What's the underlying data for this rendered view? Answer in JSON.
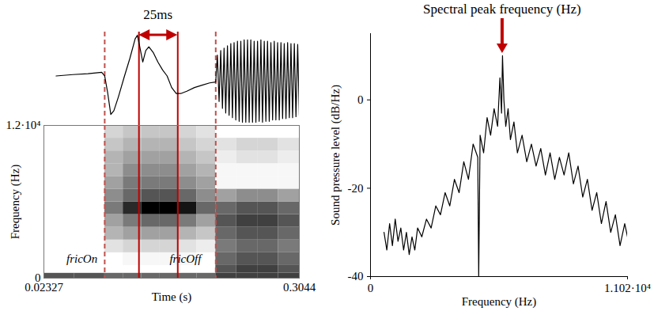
{
  "chart_data": [
    {
      "type": "line",
      "tick_labels": false,
      "color": "#000000",
      "x": [
        0.0367,
        0.0551,
        0.0718,
        0.0869,
        0.0902,
        0.0936,
        0.0969,
        0.1003,
        0.1053,
        0.112,
        0.1179,
        0.1237,
        0.1262,
        0.1288,
        0.1321,
        0.1354,
        0.1388,
        0.1438,
        0.1488,
        0.1539,
        0.1589,
        0.1639,
        0.1689,
        0.1739,
        0.1806,
        0.189,
        0.1974,
        0.2057,
        0.2124,
        0.2142,
        0.2161,
        0.2179,
        0.2198,
        0.2216,
        0.2234,
        0.2253,
        0.2271,
        0.229,
        0.2308,
        0.2326,
        0.2345,
        0.2363,
        0.2382,
        0.24,
        0.2418,
        0.2437,
        0.2455,
        0.2474,
        0.2492,
        0.251,
        0.2529,
        0.2547,
        0.2566,
        0.2584,
        0.2602,
        0.2621,
        0.2639,
        0.2658,
        0.2676,
        0.2694,
        0.2713,
        0.2731,
        0.275,
        0.2768,
        0.2786,
        0.2805,
        0.2823,
        0.2842,
        0.286,
        0.2878,
        0.2897,
        0.2915,
        0.2934,
        0.2952,
        0.297,
        0.2989,
        0.3007,
        0.3026,
        0.3044
      ],
      "values": [
        0,
        0.03,
        0.05,
        0.08,
        0,
        -0.38,
        -0.83,
        -0.75,
        -0.45,
        0,
        0.38,
        0.8,
        0.88,
        0.63,
        0.3,
        0.55,
        0.63,
        0.5,
        0.3,
        0.13,
        0,
        -0.25,
        -0.38,
        -0.38,
        -0.33,
        -0.25,
        -0.2,
        -0.15,
        -0.13,
        0.45,
        -0.55,
        0.55,
        -0.7,
        0.6,
        -0.8,
        0.65,
        -0.85,
        0.7,
        -0.9,
        0.72,
        -0.95,
        0.75,
        -0.98,
        0.75,
        -1.0,
        0.78,
        -1.0,
        0.78,
        -1.0,
        0.78,
        -1.0,
        0.75,
        -1.0,
        0.75,
        -0.98,
        0.78,
        -1.0,
        0.75,
        -0.98,
        0.75,
        -0.98,
        0.72,
        -0.95,
        0.75,
        -0.95,
        0.72,
        -0.95,
        0.72,
        -0.92,
        0.7,
        -0.92,
        0.72,
        -0.9,
        0.7,
        -0.9,
        0.7,
        -0.88,
        0.68,
        -0.85
      ],
      "annotations": [
        {
          "text": "25ms",
          "x1": 0.1279,
          "x2": 0.1706,
          "color": "#c00000"
        }
      ]
    },
    {
      "type": "heatmap",
      "xlabel": "Time (s)",
      "ylabel": "Frequency (Hz)",
      "xlim": [
        0.02327,
        0.3044
      ],
      "xticks": [
        0.02327,
        0.3044
      ],
      "ylim": [
        0,
        12000
      ],
      "yticks": [
        0,
        {
          "value": 12000,
          "label": "1.2·10⁴"
        }
      ],
      "x_bins": [
        0.02327,
        0.0566,
        0.0902,
        0.1105,
        0.1308,
        0.1511,
        0.1714,
        0.1917,
        0.2124,
        0.2354,
        0.2584,
        0.2814,
        0.3044
      ],
      "y_bins": [
        0,
        400,
        1000,
        2000,
        3000,
        4000,
        5000,
        6000,
        7000,
        8000,
        9000,
        10000,
        11000,
        12000
      ],
      "cells": [
        [
          0.55,
          0.55,
          0.5,
          0.5,
          0.5,
          0.5,
          0.5,
          0.5,
          0.6,
          0.6,
          0.6,
          0.6
        ],
        [
          0,
          0,
          0,
          0,
          0,
          0,
          0,
          0,
          0.55,
          0.6,
          0.6,
          0.55
        ],
        [
          0,
          0,
          0,
          0.05,
          0.05,
          0.05,
          0.05,
          0,
          0.5,
          0.55,
          0.55,
          0.5
        ],
        [
          0,
          0,
          0.15,
          0.2,
          0.2,
          0.2,
          0.15,
          0.1,
          0.45,
          0.5,
          0.5,
          0.45
        ],
        [
          0,
          0,
          0.3,
          0.35,
          0.35,
          0.35,
          0.3,
          0.25,
          0.5,
          0.55,
          0.55,
          0.5
        ],
        [
          0,
          0,
          0.35,
          0.45,
          0.5,
          0.5,
          0.45,
          0.35,
          0.55,
          0.6,
          0.6,
          0.55
        ],
        [
          0,
          0,
          0.45,
          0.65,
          0.75,
          0.75,
          0.7,
          0.5,
          0.5,
          0.55,
          0.55,
          0.5
        ],
        [
          0,
          0,
          0.4,
          0.5,
          0.55,
          0.55,
          0.5,
          0.4,
          0.35,
          0.4,
          0.4,
          0.35
        ],
        [
          0,
          0,
          0.35,
          0.45,
          0.45,
          0.45,
          0.4,
          0.35,
          0.05,
          0.05,
          0.05,
          0.05
        ],
        [
          0,
          0,
          0.3,
          0.4,
          0.4,
          0.4,
          0.35,
          0.3,
          0.05,
          0.05,
          0.05,
          0.05
        ],
        [
          0,
          0,
          0.3,
          0.35,
          0.35,
          0.35,
          0.3,
          0.25,
          0.1,
          0.15,
          0.15,
          0.1
        ],
        [
          0,
          0,
          0.25,
          0.3,
          0.3,
          0.3,
          0.25,
          0.2,
          0.15,
          0.2,
          0.2,
          0.15
        ],
        [
          0,
          0,
          0.2,
          0.25,
          0.25,
          0.25,
          0.2,
          0.15,
          0,
          0,
          0,
          0
        ]
      ],
      "lines": [
        {
          "x": 0.0902,
          "line_style": "dashed",
          "color": "#c0504d"
        },
        {
          "x": 0.1279,
          "line_style": "solid",
          "color": "#c00000"
        },
        {
          "x": 0.1706,
          "line_style": "solid",
          "color": "#c00000"
        },
        {
          "x": 0.2124,
          "line_style": "dashed",
          "color": "#c0504d"
        }
      ],
      "annotations": [
        {
          "text": "fricOn",
          "x": 0.0651,
          "y": 1500
        },
        {
          "text": "fricOff",
          "x": 0.179,
          "y": 1500
        }
      ]
    },
    {
      "type": "line",
      "xlabel": "Frequency (Hz)",
      "ylabel": "Sound pressure level (dB/Hz)",
      "xlim": [
        0,
        11020
      ],
      "xticks": [
        0,
        {
          "value": 11020,
          "label": "1.102·10⁴"
        }
      ],
      "ylim": [
        -40,
        15
      ],
      "yticks": [
        -40,
        -20,
        0
      ],
      "color": "#000000",
      "x": [
        580,
        700,
        820,
        940,
        1060,
        1180,
        1300,
        1420,
        1540,
        1660,
        1780,
        1900,
        2020,
        2200,
        2400,
        2600,
        2800,
        3000,
        3200,
        3400,
        3600,
        3800,
        4000,
        4200,
        4400,
        4600,
        4640,
        4700,
        4850,
        5000,
        5150,
        5300,
        5450,
        5550,
        5620,
        5660,
        5720,
        5800,
        5900,
        6000,
        6150,
        6300,
        6500,
        6700,
        6900,
        7100,
        7300,
        7500,
        7700,
        7900,
        8100,
        8300,
        8500,
        8700,
        8900,
        9100,
        9300,
        9500,
        9700,
        9900,
        10100,
        10300,
        10500,
        10700,
        10900,
        11020
      ],
      "values": [
        -30,
        -34,
        -28,
        -33,
        -27,
        -32,
        -29,
        -34,
        -30,
        -35,
        -31,
        -34,
        -29,
        -31,
        -27,
        -29,
        -24,
        -26,
        -21,
        -24,
        -18,
        -21,
        -14,
        -18,
        -10,
        -13,
        -40,
        -8,
        -12,
        -4,
        -8,
        -2,
        -6,
        5,
        -3,
        10,
        0,
        -6,
        -2,
        -9,
        -5,
        -12,
        -8,
        -14,
        -10,
        -15,
        -11,
        -17,
        -12,
        -18,
        -13,
        -17,
        -12,
        -19,
        -15,
        -22,
        -18,
        -25,
        -21,
        -28,
        -23,
        -30,
        -26,
        -33,
        -28,
        -31
      ],
      "annotations": [
        {
          "text": "Spectral peak frequency (Hz)",
          "x": 5660,
          "color": "#c00000"
        }
      ]
    }
  ]
}
